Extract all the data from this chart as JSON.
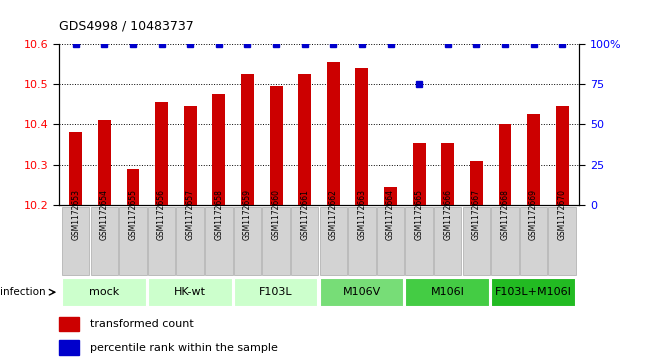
{
  "title": "GDS4998 / 10483737",
  "samples": [
    "GSM1172653",
    "GSM1172654",
    "GSM1172655",
    "GSM1172656",
    "GSM1172657",
    "GSM1172658",
    "GSM1172659",
    "GSM1172660",
    "GSM1172661",
    "GSM1172662",
    "GSM1172663",
    "GSM1172664",
    "GSM1172665",
    "GSM1172666",
    "GSM1172667",
    "GSM1172668",
    "GSM1172669",
    "GSM1172670"
  ],
  "bar_values": [
    10.38,
    10.41,
    10.29,
    10.455,
    10.445,
    10.475,
    10.525,
    10.495,
    10.525,
    10.555,
    10.54,
    10.245,
    10.355,
    10.355,
    10.31,
    10.4,
    10.425,
    10.445
  ],
  "percentile_values": [
    100,
    100,
    100,
    100,
    100,
    100,
    100,
    100,
    100,
    100,
    100,
    100,
    75,
    100,
    100,
    100,
    100,
    100
  ],
  "bar_color": "#cc0000",
  "dot_color": "#0000cc",
  "ylim_left": [
    10.2,
    10.6
  ],
  "ylim_right": [
    0,
    100
  ],
  "yticks_left": [
    10.2,
    10.3,
    10.4,
    10.5,
    10.6
  ],
  "yticks_right": [
    0,
    25,
    50,
    75,
    100
  ],
  "groups": [
    {
      "label": "mock",
      "start": 0,
      "end": 2,
      "color": "#ccffcc"
    },
    {
      "label": "HK-wt",
      "start": 3,
      "end": 5,
      "color": "#ccffcc"
    },
    {
      "label": "F103L",
      "start": 6,
      "end": 8,
      "color": "#ccffcc"
    },
    {
      "label": "M106V",
      "start": 9,
      "end": 11,
      "color": "#77dd77"
    },
    {
      "label": "M106I",
      "start": 12,
      "end": 14,
      "color": "#44cc44"
    },
    {
      "label": "F103L+M106I",
      "start": 15,
      "end": 17,
      "color": "#22bb22"
    }
  ],
  "infection_label": "infection",
  "legend_bar_label": "transformed count",
  "legend_dot_label": "percentile rank within the sample"
}
